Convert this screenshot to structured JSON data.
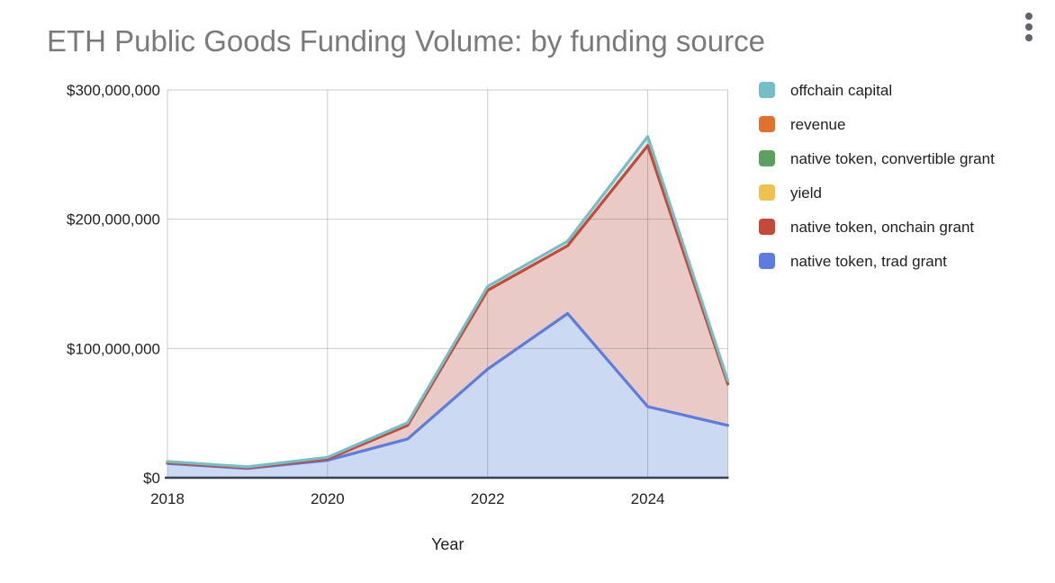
{
  "header": {
    "title": "ETH Public Goods Funding Volume: by funding source",
    "menu_icon": "kebab-vertical-menu"
  },
  "colors": {
    "background": "#ffffff",
    "title_text": "#7a7a7a",
    "tick_text": "#1f1f1f",
    "legend_text": "#1f1f1f",
    "menu_icon": "#5f6368",
    "baseline_axis": "#3a4150",
    "gridline": "#d6d6d6"
  },
  "chart_data": {
    "type": "area",
    "stacked": true,
    "title": "ETH Public Goods Funding Volume: by funding source",
    "xlabel": "Year",
    "ylabel": "",
    "units": "USD",
    "x": [
      2018,
      2019,
      2020,
      2021,
      2022,
      2023,
      2024,
      2025
    ],
    "xlim": [
      2018,
      2025
    ],
    "ylim_millions": [
      0,
      300
    ],
    "grid": true,
    "legend_position": "right",
    "x_ticks": [
      {
        "label": "2018",
        "year": 2018
      },
      {
        "label": "2020",
        "year": 2020
      },
      {
        "label": "2022",
        "year": 2022
      },
      {
        "label": "2024",
        "year": 2024
      }
    ],
    "y_ticks": [
      {
        "label": "$0",
        "value_millions": 0
      },
      {
        "label": "$100,000,000",
        "value_millions": 100
      },
      {
        "label": "$200,000,000",
        "value_millions": 200
      },
      {
        "label": "$300,000,000",
        "value_millions": 300
      }
    ],
    "series": [
      {
        "name": "offchain capital",
        "color": "#74bec7",
        "fill": "#d8eceb",
        "values_millions": [
          0.9,
          0.7,
          1.3,
          2,
          3,
          3.5,
          7,
          2.7
        ]
      },
      {
        "name": "revenue",
        "color": "#e2712e",
        "fill": "#f6d8c3",
        "values_millions": [
          0,
          0,
          0,
          0,
          0,
          0,
          0,
          0
        ]
      },
      {
        "name": "native token, convertible grant",
        "color": "#5ba05f",
        "fill": "#d4e7d5",
        "values_millions": [
          0,
          0,
          0,
          0,
          0,
          0,
          0,
          0
        ]
      },
      {
        "name": "yield",
        "color": "#efc24f",
        "fill": "#fbedcb",
        "values_millions": [
          0,
          0,
          0,
          0,
          0,
          0,
          0,
          0
        ]
      },
      {
        "name": "native token, onchain grant",
        "color": "#c54936",
        "fill": "#eacac5",
        "values_millions": [
          0.5,
          0.5,
          1.0,
          10.5,
          61,
          52.5,
          202,
          32
        ]
      },
      {
        "name": "native token, trad grant",
        "color": "#5b7de1",
        "fill": "#cbd9f3",
        "values_millions": [
          11.1,
          7.2,
          13.5,
          30,
          84,
          127,
          55,
          40.5
        ]
      }
    ],
    "stack_bottom_to_top": [
      "native token, trad grant",
      "native token, onchain grant",
      "yield",
      "native token, convertible grant",
      "revenue",
      "offchain capital"
    ],
    "totals_millions": [
      12.5,
      8.4,
      15.8,
      42.5,
      148,
      183,
      264,
      75.2
    ]
  },
  "legend": {
    "items": [
      {
        "label": "offchain capital"
      },
      {
        "label": "revenue"
      },
      {
        "label": "native token, convertible grant"
      },
      {
        "label": "yield"
      },
      {
        "label": "native token, onchain grant"
      },
      {
        "label": "native token, trad grant"
      }
    ]
  }
}
